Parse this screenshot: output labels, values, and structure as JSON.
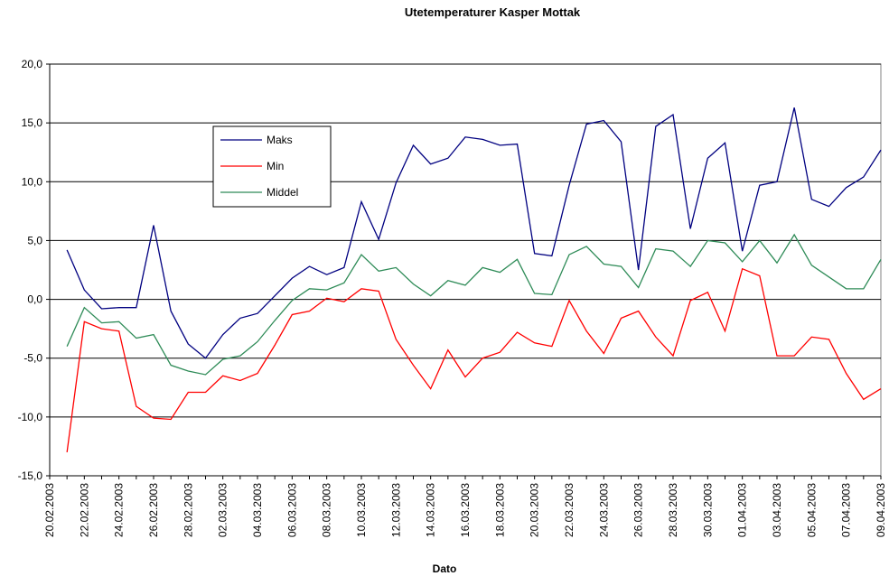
{
  "chart_data": {
    "type": "line",
    "title": "Utetemperaturer Kasper Mottak",
    "x_label": "Dato",
    "categories": [
      "20.02.2003",
      null,
      "22.02.2003",
      null,
      "24.02.2003",
      null,
      "26.02.2003",
      null,
      "28.02.2003",
      null,
      "02.03.2003",
      null,
      "04.03.2003",
      null,
      "06.03.2003",
      null,
      "08.03.2003",
      null,
      "10.03.2003",
      null,
      "12.03.2003",
      null,
      "14.03.2003",
      null,
      "16.03.2003",
      null,
      "18.03.2003",
      null,
      "20.03.2003",
      null,
      "22.03.2003",
      null,
      "24.03.2003",
      null,
      "26.03.2003",
      null,
      "28.03.2003",
      null,
      "30.03.2003",
      null,
      "01.04.2003",
      null,
      "03.04.2003",
      null,
      "05.04.2003",
      null,
      "07.04.2003",
      null,
      "09.04.2003"
    ],
    "series": [
      {
        "name": "Maks",
        "color": "#000080",
        "values": [
          null,
          4.2,
          0.8,
          -0.8,
          -0.7,
          -0.7,
          6.3,
          -1.0,
          -3.8,
          -5.0,
          -3.0,
          -1.6,
          -1.2,
          0.3,
          1.8,
          2.8,
          2.1,
          2.7,
          8.3,
          5.1,
          9.9,
          13.1,
          11.5,
          12.0,
          13.8,
          13.6,
          13.1,
          13.2,
          3.9,
          3.7,
          9.7,
          14.9,
          15.2,
          13.4,
          2.5,
          14.7,
          15.7,
          6.0,
          12.0,
          13.3,
          4.1,
          9.7,
          10.0,
          16.3,
          8.5,
          7.9,
          9.5,
          10.4,
          12.7
        ]
      },
      {
        "name": "Min",
        "color": "#ff0000",
        "values": [
          null,
          -13.0,
          -1.9,
          -2.5,
          -2.7,
          -9.1,
          -10.1,
          -10.2,
          -7.9,
          -7.9,
          -6.5,
          -6.9,
          -6.3,
          -3.9,
          -1.3,
          -1.0,
          0.1,
          -0.2,
          0.9,
          0.7,
          -3.4,
          -5.6,
          -7.6,
          -4.3,
          -6.6,
          -5.0,
          -4.5,
          -2.8,
          -3.7,
          -4.0,
          -0.1,
          -2.7,
          -4.6,
          -1.6,
          -1.0,
          -3.2,
          -4.8,
          -0.1,
          0.6,
          -2.7,
          2.6,
          2.0,
          -4.8,
          -4.8,
          -3.2,
          -3.4,
          -6.3,
          -8.5,
          -7.6
        ]
      },
      {
        "name": "Middel",
        "color": "#2e8b57",
        "values": [
          null,
          -4.0,
          -0.7,
          -2.0,
          -1.9,
          -3.3,
          -3.0,
          -5.6,
          -6.1,
          -6.4,
          -5.1,
          -4.8,
          -3.6,
          -1.8,
          -0.1,
          0.9,
          0.8,
          1.4,
          3.8,
          2.4,
          2.7,
          1.3,
          0.3,
          1.6,
          1.2,
          2.7,
          2.3,
          3.4,
          0.5,
          0.4,
          3.8,
          4.5,
          3.0,
          2.8,
          1.0,
          4.3,
          4.1,
          2.8,
          5.0,
          4.8,
          3.2,
          5.0,
          3.1,
          5.5,
          2.9,
          1.9,
          0.9,
          0.9,
          3.4
        ]
      }
    ],
    "ylim": [
      -15,
      20
    ],
    "yticks": [
      {
        "value": -15,
        "label": "-15,0"
      },
      {
        "value": -10,
        "label": "-10,0"
      },
      {
        "value": -5,
        "label": "-5,0"
      },
      {
        "value": 0,
        "label": "0,0"
      },
      {
        "value": 5,
        "label": "5,0"
      },
      {
        "value": 10,
        "label": "10,0"
      },
      {
        "value": 15,
        "label": "15,0"
      },
      {
        "value": 20,
        "label": "20,0"
      }
    ],
    "grid": true
  }
}
